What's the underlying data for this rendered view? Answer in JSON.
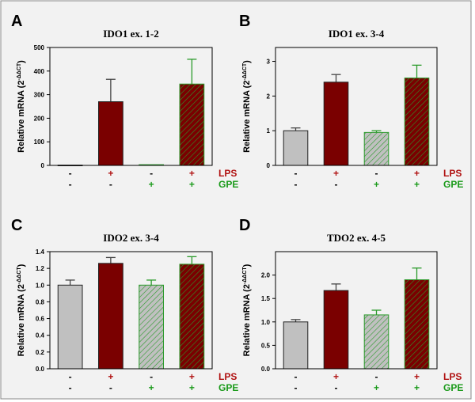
{
  "chart_data": [
    {
      "type": "bar",
      "panel": "A",
      "title": "IDO1 ex. 1-2",
      "ylabel": "Relative mRNA (2^-ΔΔCT)",
      "ylim": [
        0,
        500
      ],
      "yticks": [
        "0",
        "100",
        "200",
        "300",
        "400",
        "500"
      ],
      "values": [
        1,
        270,
        3,
        345
      ],
      "errors": [
        0,
        95,
        0,
        105
      ]
    },
    {
      "type": "bar",
      "panel": "B",
      "title": "IDO1 ex. 3-4",
      "ylabel": "Relative mRNA (2^-ΔΔCT)",
      "ylim": [
        0,
        3.4
      ],
      "yticks": [
        "0",
        "1",
        "2",
        "3"
      ],
      "values": [
        1.0,
        2.4,
        0.95,
        2.52
      ],
      "errors": [
        0.08,
        0.22,
        0.05,
        0.37
      ]
    },
    {
      "type": "bar",
      "panel": "C",
      "title": "IDO2 ex. 3-4",
      "ylabel": "Relative mRNA (2^-ΔΔCT)",
      "ylim": [
        0,
        1.4
      ],
      "yticks": [
        "0.0",
        "0.2",
        "0.4",
        "0.6",
        "0.8",
        "1.0",
        "1.2",
        "1.4"
      ],
      "values": [
        1.0,
        1.26,
        1.0,
        1.25
      ],
      "errors": [
        0.06,
        0.07,
        0.06,
        0.09
      ]
    },
    {
      "type": "bar",
      "panel": "D",
      "title": "TDO2 ex. 4-5",
      "ylabel": "Relative mRNA (2^-ΔΔCT)",
      "ylim": [
        0,
        2.5
      ],
      "yticks": [
        "0.0",
        "0.5",
        "1.0",
        "1.5",
        "2.0"
      ],
      "values": [
        1.0,
        1.67,
        1.15,
        1.9
      ],
      "errors": [
        0.05,
        0.14,
        0.1,
        0.25
      ]
    }
  ],
  "conditions": {
    "lps_label": "LPS",
    "gpe_label": "GPE",
    "lps": [
      "-",
      "+",
      "-",
      "+"
    ],
    "gpe": [
      "-",
      "-",
      "+",
      "+"
    ]
  },
  "colors": {
    "control": "#c0c0c0",
    "lps": "#7a0000",
    "gpe_line": "#2a9a2a",
    "error_dark": "#444444",
    "lps_text": "#b01010",
    "gpe_text": "#1a9a1a",
    "background": "#f2f2f2"
  }
}
